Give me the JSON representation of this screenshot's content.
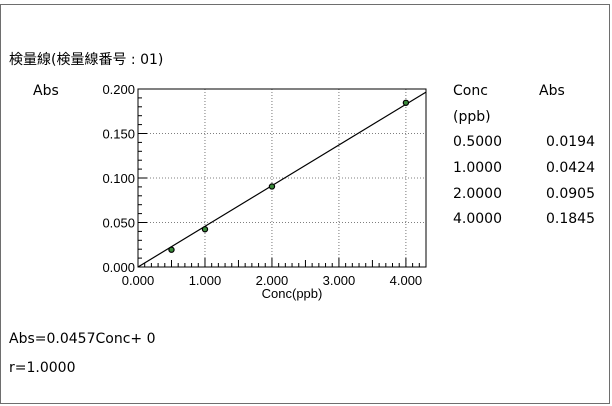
{
  "chart_title": "検量線(検量線番号 : 01)",
  "chart_data": {
    "type": "scatter",
    "xlabel": "Conc(ppb)",
    "ylabel": "Abs",
    "xlim": [
      0,
      4.3
    ],
    "ylim": [
      0,
      0.2
    ],
    "x_ticks": [
      "0.000",
      "1.000",
      "2.000",
      "3.000",
      "4.000"
    ],
    "y_ticks": [
      "0.000",
      "0.050",
      "0.100",
      "0.150",
      "0.200"
    ],
    "grid": true,
    "points": [
      {
        "x": 0.5,
        "y": 0.0194
      },
      {
        "x": 1.0,
        "y": 0.0424
      },
      {
        "x": 2.0,
        "y": 0.0905
      },
      {
        "x": 4.0,
        "y": 0.1845
      }
    ],
    "fit": {
      "slope": 0.0457,
      "intercept": 0
    }
  },
  "data_table": {
    "header_conc": "Conc",
    "header_conc_unit": "(ppb)",
    "header_abs": "Abs",
    "rows": [
      {
        "conc": "0.5000",
        "abs": "0.0194"
      },
      {
        "conc": "1.0000",
        "abs": "0.0424"
      },
      {
        "conc": "2.0000",
        "abs": "0.0905"
      },
      {
        "conc": "4.0000",
        "abs": "0.1845"
      }
    ]
  },
  "equation": "Abs=0.0457Conc+ 0",
  "r_value": "r=1.0000"
}
